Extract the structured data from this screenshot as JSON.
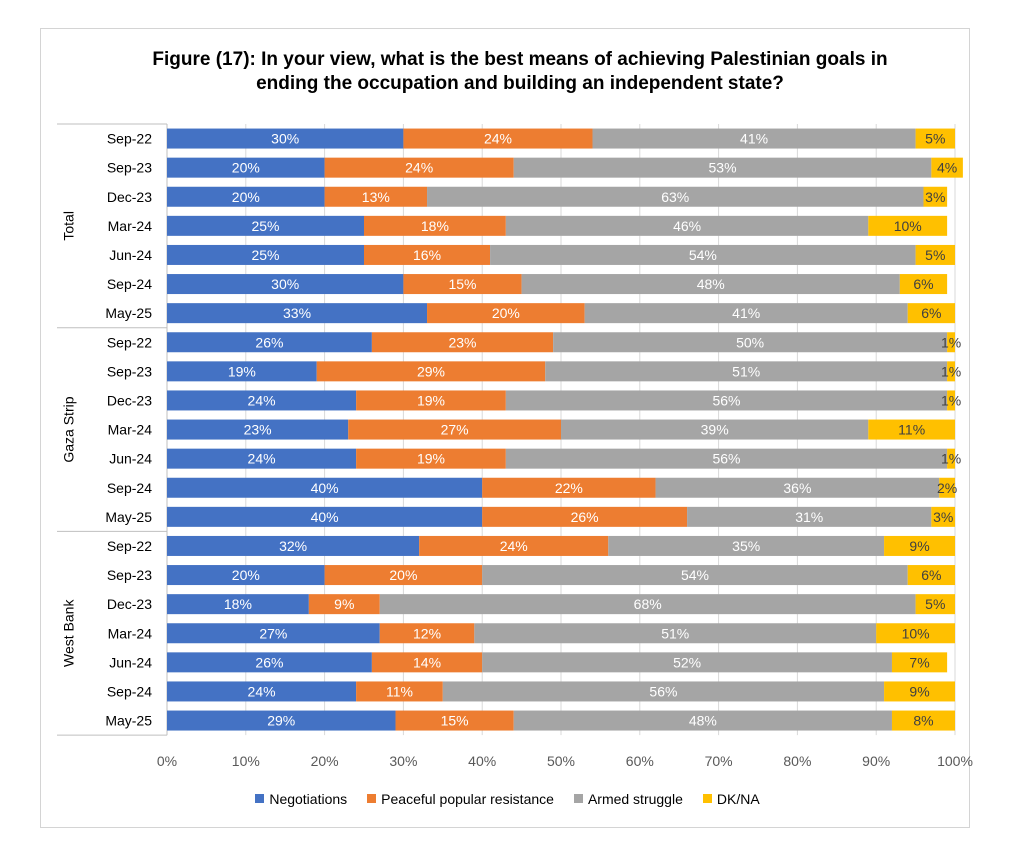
{
  "title": {
    "bold": "Figure (17)",
    "text": ": In your view, what is the best means of achieving Palestinian goals in ending the occupation and building an independent state?"
  },
  "chart_data": {
    "type": "bar",
    "orientation": "horizontal",
    "stacked": true,
    "percent_stacked": true,
    "xlim": [
      0,
      100
    ],
    "x_ticks": [
      "0%",
      "10%",
      "20%",
      "30%",
      "40%",
      "50%",
      "60%",
      "70%",
      "80%",
      "90%",
      "100%"
    ],
    "grid": true,
    "legend_position": "bottom",
    "groups": [
      {
        "name": "Total",
        "categories": [
          "Sep-22",
          "Sep-23",
          "Dec-23",
          "Mar-24",
          "Jun-24",
          "Sep-24",
          "May-25"
        ],
        "Negotiations": [
          30,
          20,
          20,
          25,
          25,
          30,
          33
        ],
        "Peaceful popular resistance": [
          24,
          24,
          13,
          18,
          16,
          15,
          20
        ],
        "Armed struggle": [
          41,
          53,
          63,
          46,
          54,
          48,
          41
        ],
        "DK/NA": [
          5,
          4,
          3,
          10,
          5,
          6,
          6
        ]
      },
      {
        "name": "Gaza Strip",
        "categories": [
          "Sep-22",
          "Sep-23",
          "Dec-23",
          "Mar-24",
          "Jun-24",
          "Sep-24",
          "May-25"
        ],
        "Negotiations": [
          26,
          19,
          24,
          23,
          24,
          40,
          40
        ],
        "Peaceful popular resistance": [
          23,
          29,
          19,
          27,
          19,
          22,
          26
        ],
        "Armed struggle": [
          50,
          51,
          56,
          39,
          56,
          36,
          31
        ],
        "DK/NA": [
          1,
          1,
          1,
          11,
          1,
          2,
          3
        ]
      },
      {
        "name": "West Bank",
        "categories": [
          "Sep-22",
          "Sep-23",
          "Dec-23",
          "Mar-24",
          "Jun-24",
          "Sep-24",
          "May-25"
        ],
        "Negotiations": [
          32,
          20,
          18,
          27,
          26,
          24,
          29
        ],
        "Peaceful popular resistance": [
          24,
          20,
          9,
          12,
          14,
          11,
          15
        ],
        "Armed struggle": [
          35,
          54,
          68,
          51,
          52,
          56,
          48
        ],
        "DK/NA": [
          9,
          6,
          5,
          10,
          7,
          9,
          8
        ]
      }
    ],
    "series": [
      {
        "name": "Negotiations",
        "color": "#4472C4",
        "label_color": "#ffffff"
      },
      {
        "name": "Peaceful popular resistance",
        "color": "#ED7D31",
        "label_color": "#ffffff"
      },
      {
        "name": "Armed struggle",
        "color": "#A5A5A5",
        "label_color": "#ffffff"
      },
      {
        "name": "DK/NA",
        "color": "#FFC000",
        "label_color": "#404040"
      }
    ],
    "value_suffix": "%"
  }
}
